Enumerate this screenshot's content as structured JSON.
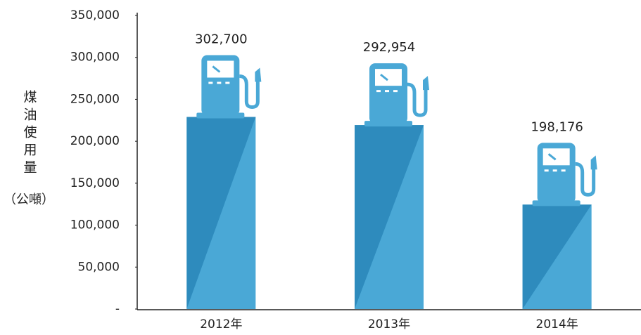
{
  "chart_data": {
    "type": "bar",
    "ylabel": "煤油使用量",
    "yunit": "（公噸）",
    "categories": [
      "2012年",
      "2013年",
      "2014年"
    ],
    "values": [
      302700,
      292954,
      198176
    ],
    "value_labels": [
      "302,700",
      "292,954",
      "198,176"
    ],
    "color": "#2e8bbd",
    "accent_color": "#4aa8d6",
    "ylim": [
      0,
      350000
    ],
    "yticks": [
      {
        "value": 0,
        "label": "-"
      },
      {
        "value": 50000,
        "label": "50,000"
      },
      {
        "value": 100000,
        "label": "100,000"
      },
      {
        "value": 150000,
        "label": "150,000"
      },
      {
        "value": 200000,
        "label": "200,000"
      },
      {
        "value": 250000,
        "label": "250,000"
      },
      {
        "value": 300000,
        "label": "300,000"
      },
      {
        "value": 350000,
        "label": "350,000"
      }
    ],
    "grid": false
  }
}
